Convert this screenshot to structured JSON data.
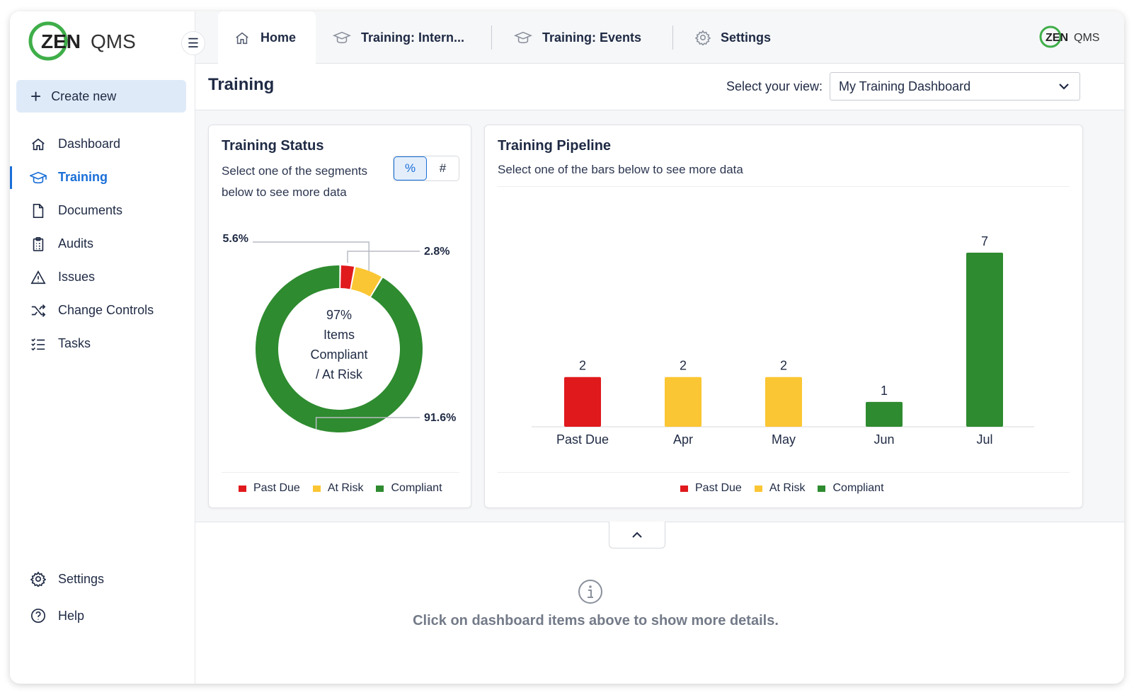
{
  "brand": {
    "logo_text_bold": "ZEN",
    "logo_text_light": "QMS"
  },
  "sidebar": {
    "collapse_label": "☰",
    "create_label": "Create new",
    "items": [
      {
        "label": "Dashboard",
        "icon": "home-icon",
        "active": false
      },
      {
        "label": "Training",
        "icon": "graduation-cap-icon",
        "active": true
      },
      {
        "label": "Documents",
        "icon": "document-icon",
        "active": false
      },
      {
        "label": "Audits",
        "icon": "clipboard-icon",
        "active": false
      },
      {
        "label": "Issues",
        "icon": "warning-icon",
        "active": false
      },
      {
        "label": "Change Controls",
        "icon": "shuffle-icon",
        "active": false
      },
      {
        "label": "Tasks",
        "icon": "checklist-icon",
        "active": false
      }
    ],
    "bottom_items": [
      {
        "label": "Settings",
        "icon": "gear-icon"
      },
      {
        "label": "Help",
        "icon": "help-icon"
      }
    ]
  },
  "tabs": [
    {
      "label": "Home",
      "icon": "home-icon",
      "active": true
    },
    {
      "label": "Training: Intern...",
      "icon": "graduation-cap-icon",
      "active": false
    },
    {
      "label": "Training: Events",
      "icon": "graduation-cap-icon",
      "active": false
    },
    {
      "label": "Settings",
      "icon": "gear-icon",
      "active": false
    }
  ],
  "page": {
    "title": "Training",
    "view_label": "Select your view:",
    "view_value": "My Training Dashboard"
  },
  "status_card": {
    "title": "Training Status",
    "subtitle_line1": "Select one of the segments",
    "subtitle_line2": "below to see more data",
    "toggle_percent": "%",
    "toggle_count": "#",
    "center_line1": "97%",
    "center_line2": "Items",
    "center_line3": "Compliant",
    "center_line4": "/ At Risk",
    "legend": [
      "Past Due",
      "At Risk",
      "Compliant"
    ]
  },
  "pipeline_card": {
    "title": "Training Pipeline",
    "subtitle": "Select one of the bars below to see more data",
    "legend": [
      "Past Due",
      "At Risk",
      "Compliant"
    ]
  },
  "colors": {
    "past_due": "#e0191c",
    "at_risk": "#fbc633",
    "compliant": "#2e8b2f",
    "accent": "#1a6fd8"
  },
  "chart_data": [
    {
      "type": "pie",
      "categories": [
        "Past Due",
        "At Risk",
        "Compliant"
      ],
      "values": [
        2.8,
        5.6,
        91.6
      ],
      "labels": [
        "2.8%",
        "5.6%",
        "91.6%"
      ],
      "donut": true,
      "legend_position": "bottom"
    },
    {
      "type": "bar",
      "categories": [
        "Past Due",
        "Apr",
        "May",
        "Jun",
        "Jul"
      ],
      "values": [
        2,
        2,
        2,
        1,
        7
      ],
      "bar_status": [
        "Past Due",
        "At Risk",
        "At Risk",
        "Compliant",
        "Compliant"
      ],
      "ylim": [
        0,
        7
      ],
      "grid": false,
      "legend_position": "bottom"
    }
  ],
  "bottom": {
    "info_text": "Click on dashboard items above to show more details."
  }
}
